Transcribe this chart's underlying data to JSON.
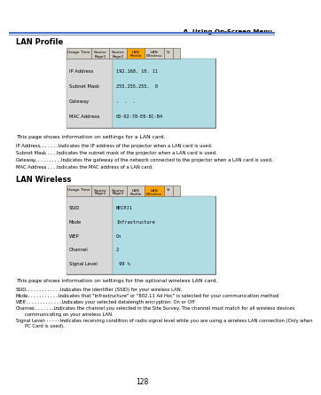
{
  "page_header": "6. Using On-Screen Menu",
  "page_number": "128",
  "bg_color": "#ffffff",
  "header_line_color1": "#4472c4",
  "header_line_color2": "#1a3a6e",
  "section1_title": "LAN Profile",
  "section2_title": "LAN Wireless",
  "lan_profile_rows": [
    [
      "IP Address",
      "192.168. 10. 11"
    ],
    [
      "Subnet Mask",
      "255.255.255.  0"
    ],
    [
      "Gateway",
      ".  .  ."
    ],
    [
      "MAC Address",
      "00-02-78-E0-8C-B4"
    ]
  ],
  "lan_wireless_rows": [
    [
      "SSID",
      "NECPJ1"
    ],
    [
      "Mode",
      "Infrastructure"
    ],
    [
      "WEP",
      "On"
    ],
    [
      "Channel",
      "2"
    ],
    [
      "Signal Level",
      " 99 %"
    ]
  ],
  "tab_active_color": "#FFA500",
  "tab_normal_color": "#d4d0c8",
  "tab_border_color": "#808080",
  "panel_bg": "#b0dde4",
  "panel_left_bg": "#d8d8d8",
  "panel_outer_bg": "#c8c8c8",
  "desc1": "This page shows information on settings for a LAN card.",
  "desc1_items": [
    [
      "IP Address",
      "......... ",
      "Indicates the IP address of the projector when a LAN card is used."
    ],
    [
      "Subnet Mask",
      "....... ",
      "Indicates the subnet mask of the projector when a LAN card is used."
    ],
    [
      "Gateway",
      ".............. ",
      "Indicates the gateway of the network connected to the projector when a LAN card is used."
    ],
    [
      "MAC Address",
      "....... ",
      "Indicates the MAC address of a LAN card."
    ]
  ],
  "desc2": "This page shows information on settings for the optional wireless LAN card.",
  "desc2_items": [
    [
      "SSID",
      ".................. ",
      "Indicates the identifier (SSID) for your wireless LAN."
    ],
    [
      "Mode",
      "................. ",
      "Indicates that \"Infrastructure\" or \"802.11 Ad Hoc\" is selected for your communication method"
    ],
    [
      "WEP",
      ".................... ",
      "Indicates your selected datalength encryption: On or Off"
    ],
    [
      "Channel",
      "........... ",
      "Indicates the channel you selected in the Site Survey. The channel must match for all wireless devices",
      "communicating on your wireless LAN."
    ],
    [
      "Signal Level",
      "........ ",
      "Indicates receiving condition of radio signal level while you are using a wireless LAN connection (Only when",
      "PC Card is used)."
    ]
  ]
}
